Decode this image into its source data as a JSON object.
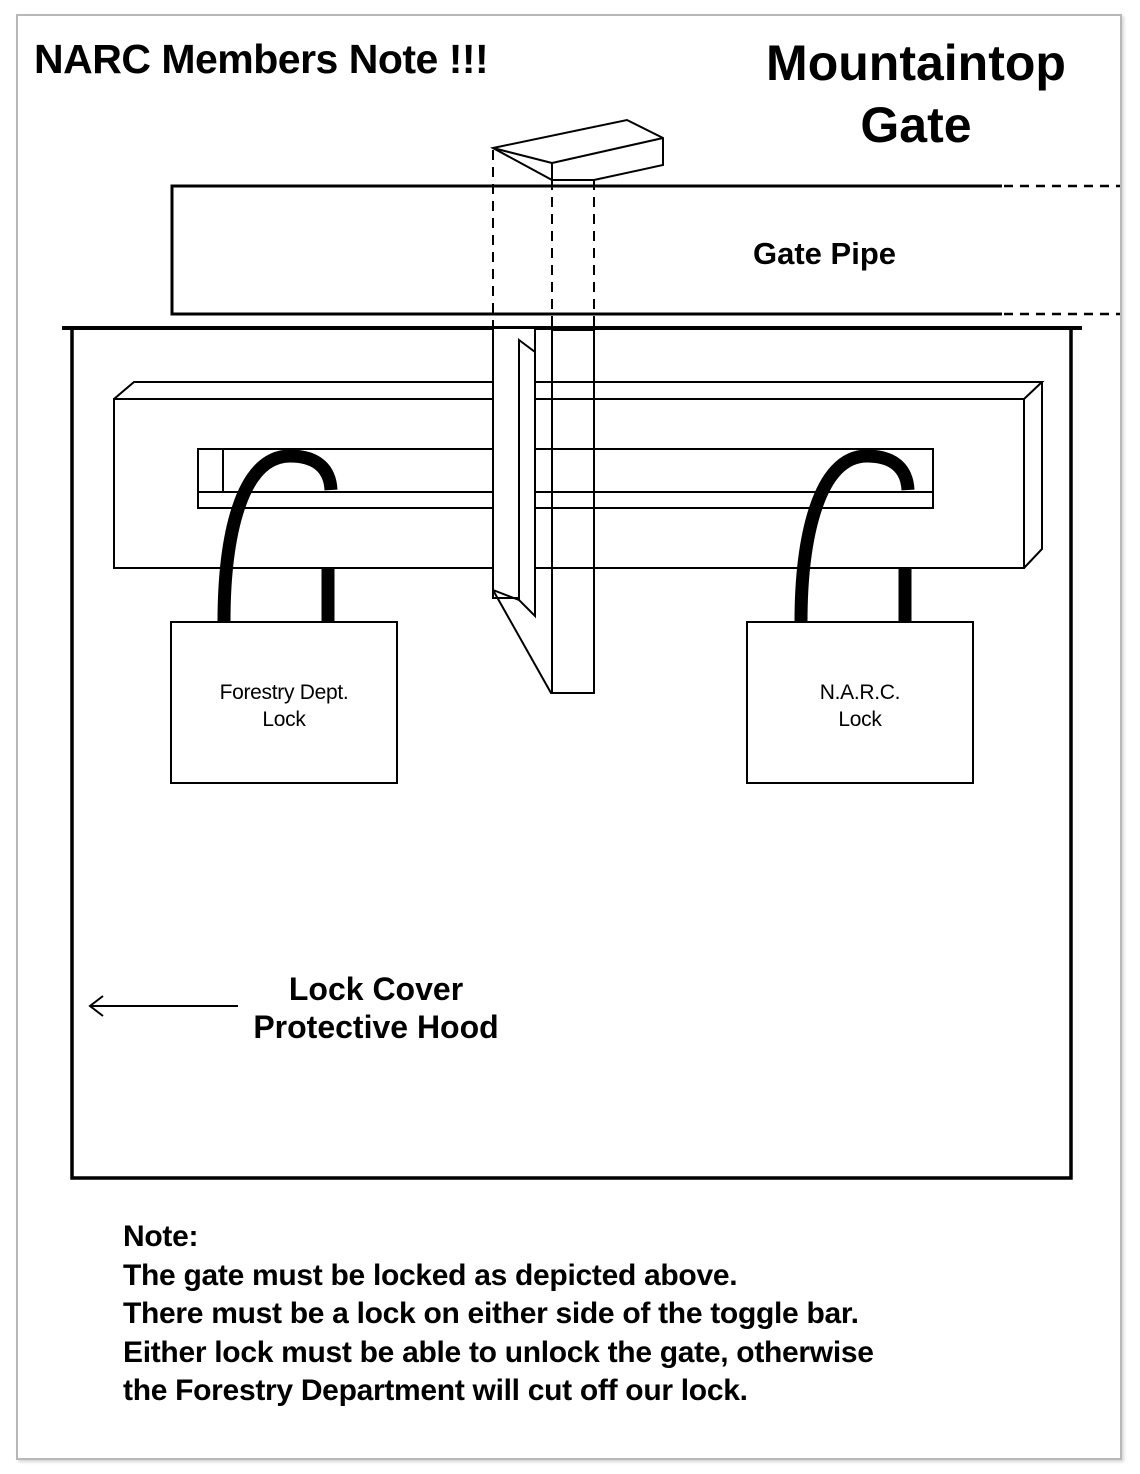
{
  "header": {
    "left_title": "NARC Members Note !!!",
    "right_title_line1": "Mountaintop",
    "right_title_line2": "Gate"
  },
  "diagram": {
    "gate_pipe_label": "Gate Pipe",
    "left_lock": {
      "line1": "Forestry Dept.",
      "line2": "Lock"
    },
    "right_lock": {
      "line1": "N.A.R.C.",
      "line2": "Lock"
    },
    "hood_label_line1": "Lock Cover",
    "hood_label_line2": "Protective Hood"
  },
  "note": {
    "heading": "Note:",
    "lines": [
      "The gate must be locked as depicted above.",
      "There must be a lock on either side of the toggle bar.",
      "Either lock must be able to unlock the gate, otherwise",
      "the Forestry Department will cut off our lock."
    ]
  }
}
